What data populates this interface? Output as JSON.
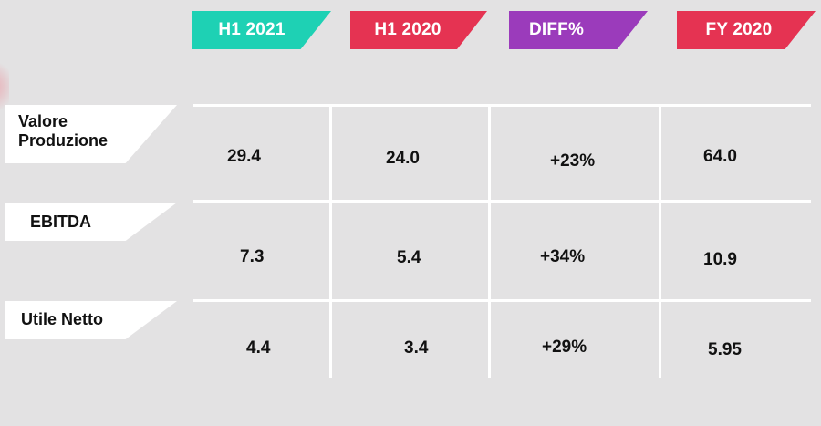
{
  "columns": [
    "H1 2021",
    "H1 2020",
    "DIFF%",
    "FY 2020"
  ],
  "column_colors": [
    "#1ed1b4",
    "#e53352",
    "#9b3bbb",
    "#e53352"
  ],
  "rows": [
    {
      "label_line1": "Valore",
      "label_line2": "Produzione",
      "values": [
        "29.4",
        "24.0",
        "+23%",
        "64.0"
      ]
    },
    {
      "label": "EBITDA",
      "values": [
        "7.3",
        "5.4",
        "+34%",
        "10.9"
      ]
    },
    {
      "label": "Utile Netto",
      "values": [
        "4.4",
        "3.4",
        "+29%",
        "5.95"
      ]
    }
  ]
}
